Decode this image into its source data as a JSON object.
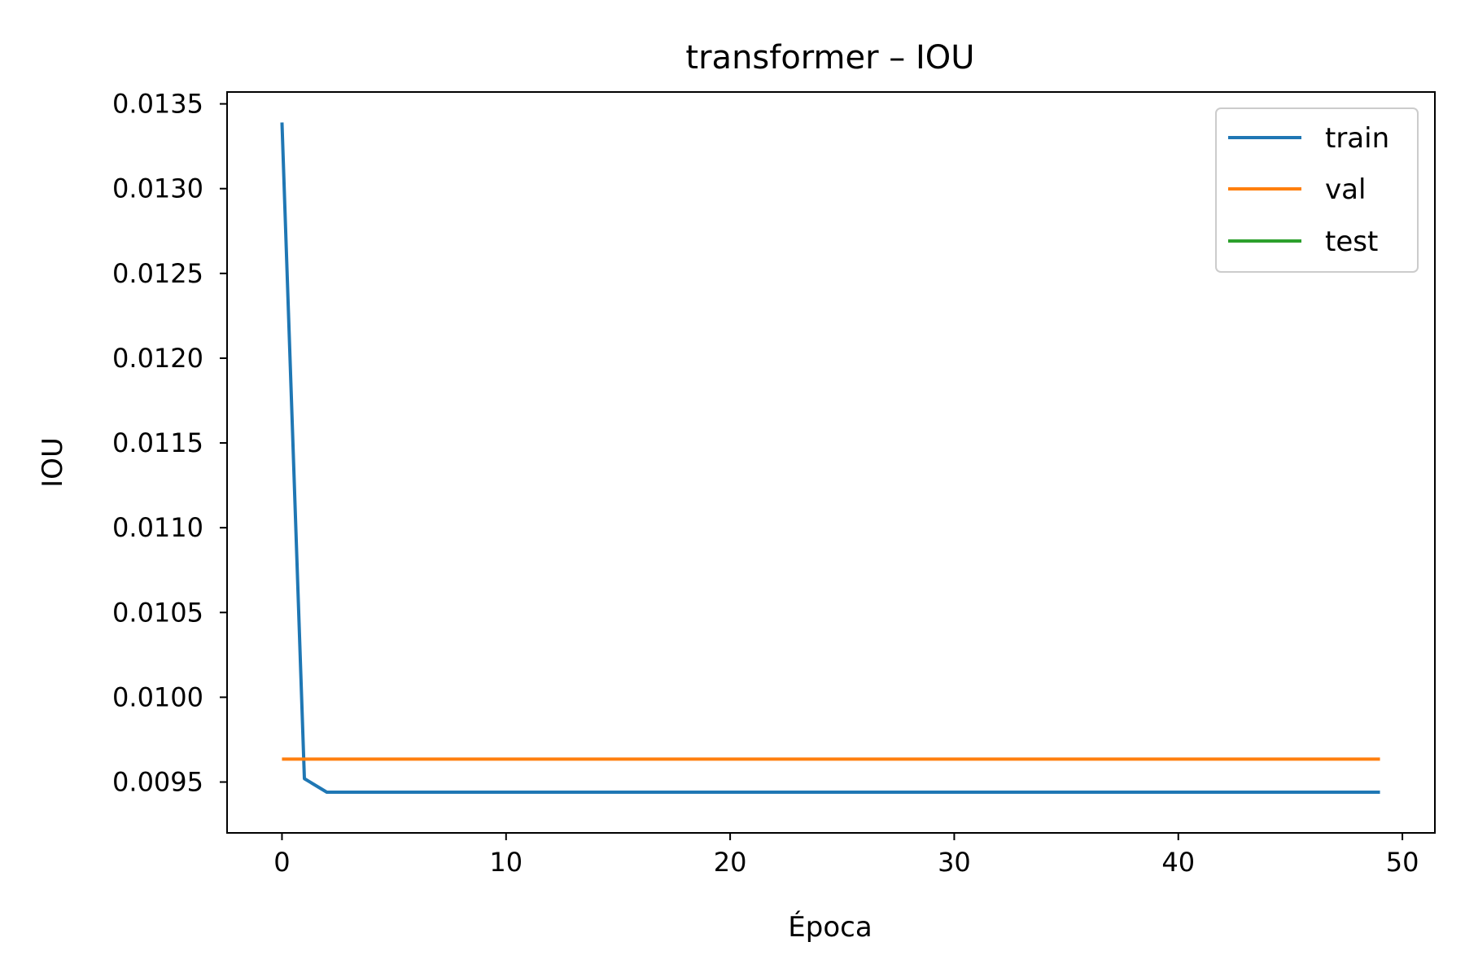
{
  "chart_data": {
    "type": "line",
    "title": "transformer – IOU",
    "xlabel": "Época",
    "ylabel": "IOU",
    "xlim": [
      -2.45,
      51.45
    ],
    "ylim": [
      0.0092,
      0.01357
    ],
    "xticks": [
      0,
      10,
      20,
      30,
      40,
      50
    ],
    "xtick_labels": [
      "0",
      "10",
      "20",
      "30",
      "40",
      "50"
    ],
    "yticks": [
      0.0095,
      0.01,
      0.0105,
      0.011,
      0.0115,
      0.012,
      0.0125,
      0.013,
      0.0135
    ],
    "ytick_labels": [
      "0.0095",
      "0.0100",
      "0.0105",
      "0.0110",
      "0.0115",
      "0.0120",
      "0.0125",
      "0.0130",
      "0.0135"
    ],
    "grid": false,
    "legend": {
      "position": "top-right"
    },
    "series": [
      {
        "name": "train",
        "color": "#1f77b4",
        "x": [
          0,
          1,
          2,
          3,
          4,
          5,
          6,
          7,
          8,
          9,
          10,
          11,
          12,
          13,
          14,
          15,
          16,
          17,
          18,
          19,
          20,
          21,
          22,
          23,
          24,
          25,
          26,
          27,
          28,
          29,
          30,
          31,
          32,
          33,
          34,
          35,
          36,
          37,
          38,
          39,
          40,
          41,
          42,
          43,
          44,
          45,
          46,
          47,
          48,
          49
        ],
        "y": [
          0.01339,
          0.00952,
          0.00944,
          0.00944,
          0.00944,
          0.00944,
          0.00944,
          0.00944,
          0.00944,
          0.00944,
          0.00944,
          0.00944,
          0.00944,
          0.00944,
          0.00944,
          0.00944,
          0.00944,
          0.00944,
          0.00944,
          0.00944,
          0.00944,
          0.00944,
          0.00944,
          0.00944,
          0.00944,
          0.00944,
          0.00944,
          0.00944,
          0.00944,
          0.00944,
          0.00944,
          0.00944,
          0.00944,
          0.00944,
          0.00944,
          0.00944,
          0.00944,
          0.00944,
          0.00944,
          0.00944,
          0.00944,
          0.00944,
          0.00944,
          0.00944,
          0.00944,
          0.00944,
          0.00944,
          0.00944,
          0.00944,
          0.00944
        ]
      },
      {
        "name": "val",
        "color": "#ff7f0e",
        "x": [
          0,
          1,
          2,
          3,
          4,
          5,
          6,
          7,
          8,
          9,
          10,
          11,
          12,
          13,
          14,
          15,
          16,
          17,
          18,
          19,
          20,
          21,
          22,
          23,
          24,
          25,
          26,
          27,
          28,
          29,
          30,
          31,
          32,
          33,
          34,
          35,
          36,
          37,
          38,
          39,
          40,
          41,
          42,
          43,
          44,
          45,
          46,
          47,
          48,
          49
        ],
        "y": [
          0.009635,
          0.009635,
          0.009635,
          0.009635,
          0.009635,
          0.009635,
          0.009635,
          0.009635,
          0.009635,
          0.009635,
          0.009635,
          0.009635,
          0.009635,
          0.009635,
          0.009635,
          0.009635,
          0.009635,
          0.009635,
          0.009635,
          0.009635,
          0.009635,
          0.009635,
          0.009635,
          0.009635,
          0.009635,
          0.009635,
          0.009635,
          0.009635,
          0.009635,
          0.009635,
          0.009635,
          0.009635,
          0.009635,
          0.009635,
          0.009635,
          0.009635,
          0.009635,
          0.009635,
          0.009635,
          0.009635,
          0.009635,
          0.009635,
          0.009635,
          0.009635,
          0.009635,
          0.009635,
          0.009635,
          0.009635,
          0.009635,
          0.009635
        ]
      },
      {
        "name": "test",
        "color": "#2ca02c",
        "x": [],
        "y": []
      }
    ]
  }
}
